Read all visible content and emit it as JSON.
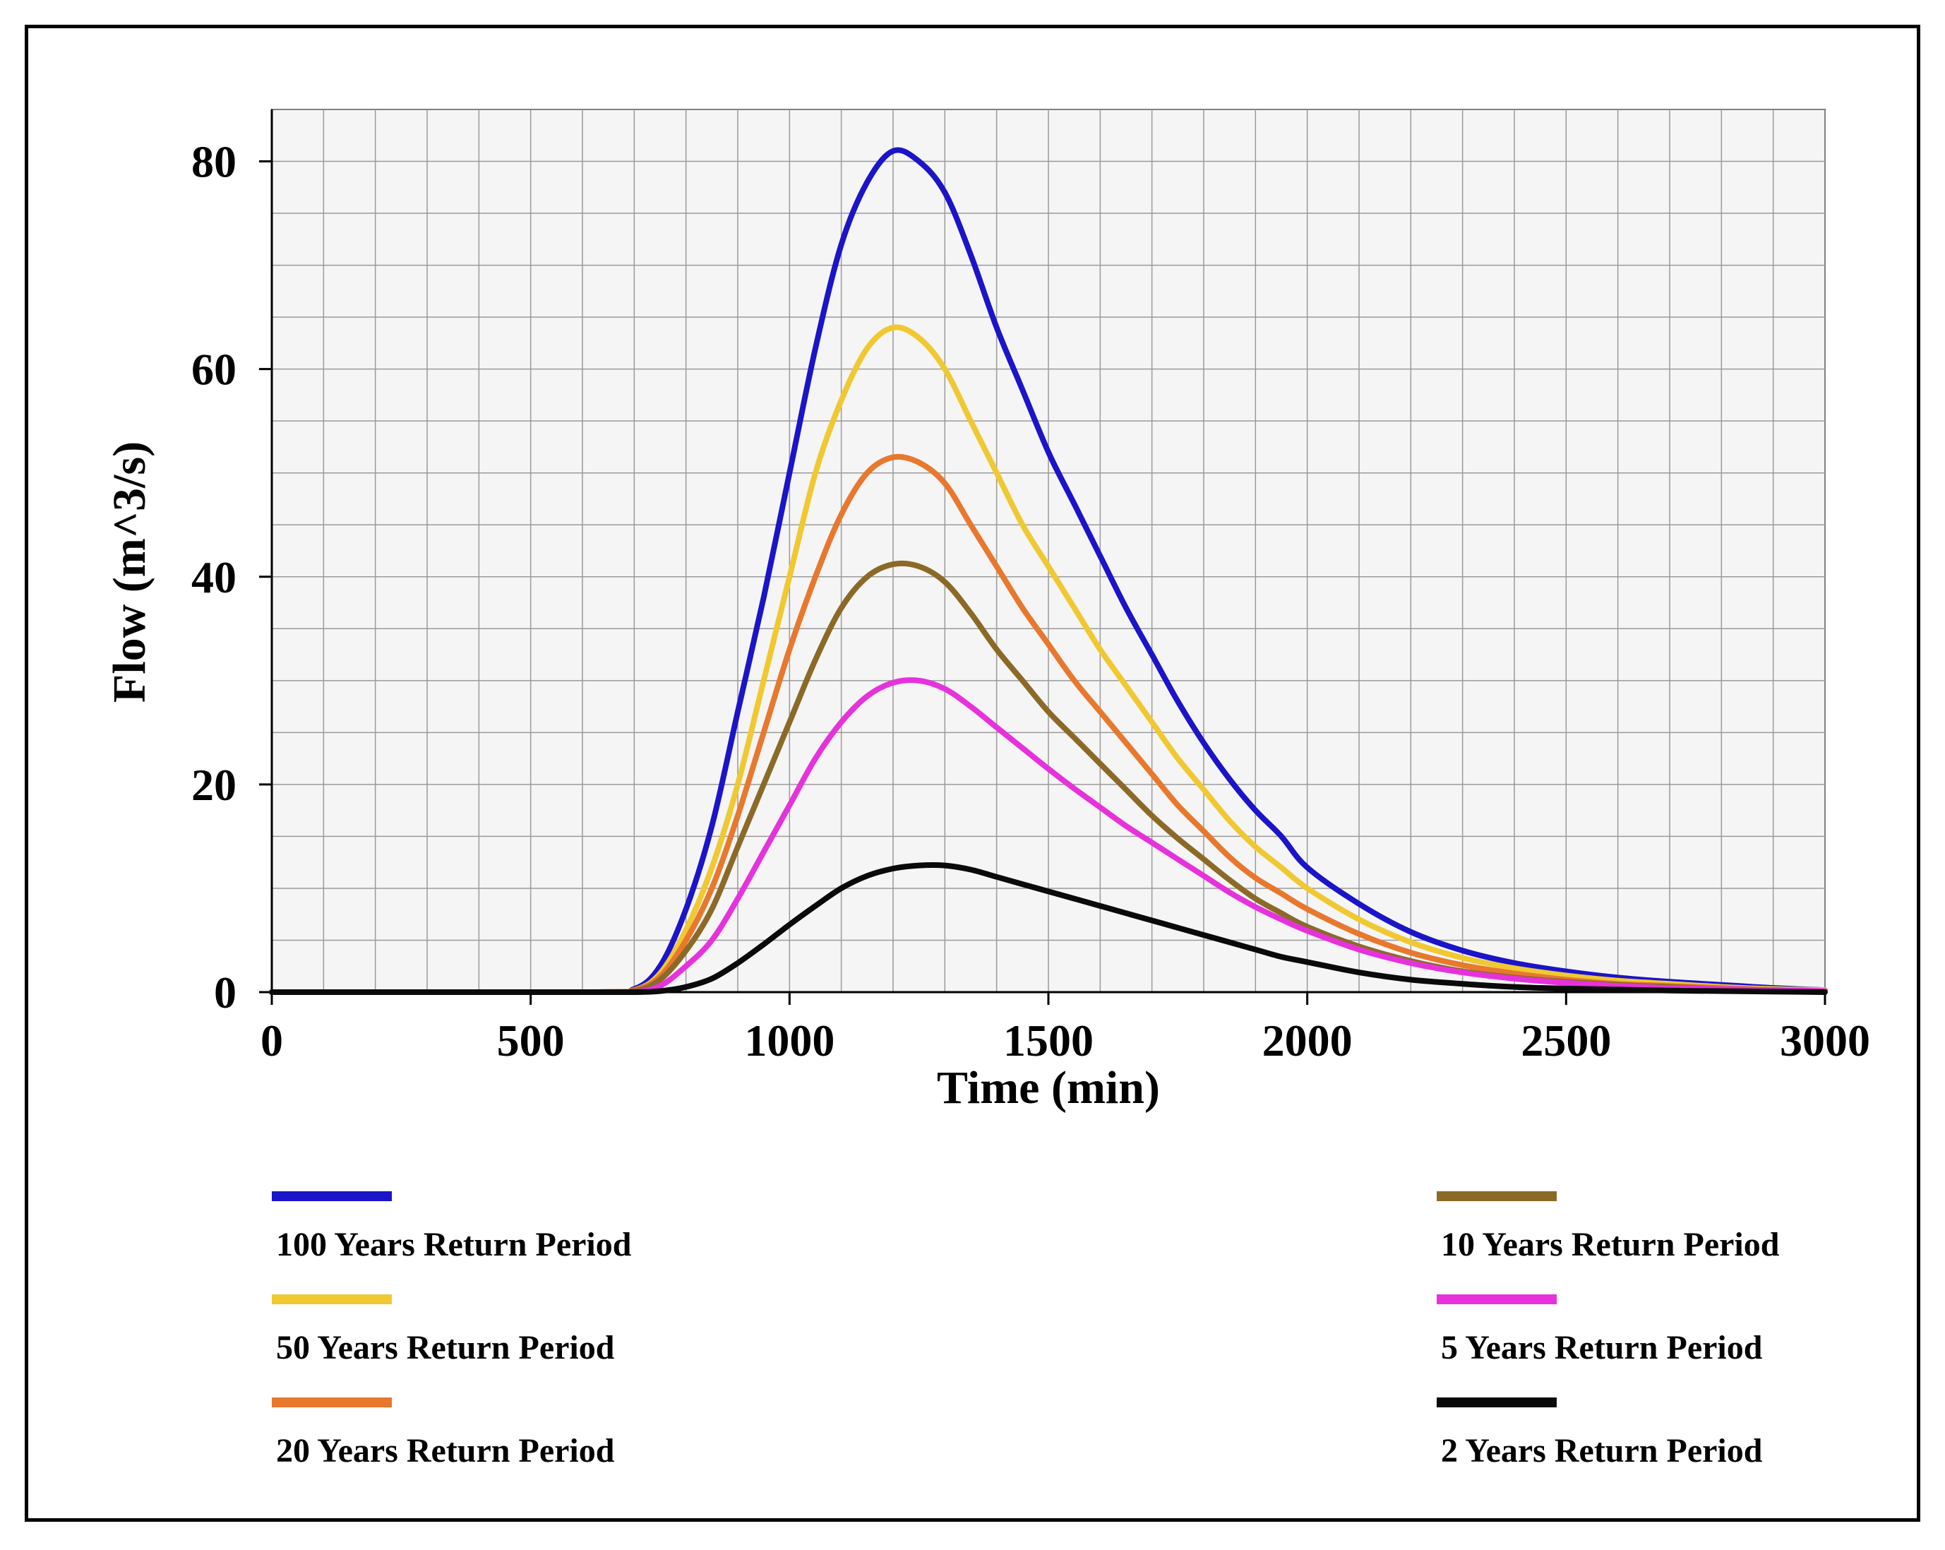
{
  "chart_data": {
    "type": "line",
    "title": "",
    "xlabel": "Time (min)",
    "ylabel": "Flow (m^3/s)",
    "xlim": [
      0,
      3000
    ],
    "ylim": [
      0,
      85
    ],
    "x_ticks": [
      0,
      500,
      1000,
      1500,
      2000,
      2500,
      3000
    ],
    "y_ticks": [
      0,
      20,
      40,
      60,
      80
    ],
    "grid": true,
    "legend_position": "bottom",
    "series": [
      {
        "name": "100 Years Return Period",
        "color": "#1c14c8",
        "x": [
          0,
          620,
          700,
          750,
          800,
          850,
          900,
          950,
          1000,
          1050,
          1100,
          1150,
          1200,
          1250,
          1300,
          1350,
          1400,
          1450,
          1500,
          1550,
          1600,
          1650,
          1700,
          1750,
          1800,
          1850,
          1900,
          1950,
          2000,
          2100,
          2200,
          2300,
          2400,
          2500,
          2600,
          2700,
          2800,
          2900,
          3000
        ],
        "y": [
          0,
          0,
          0.3,
          2.5,
          8,
          16,
          27,
          38,
          50,
          62,
          72,
          78,
          81,
          80,
          77,
          71,
          64,
          58,
          52,
          47,
          42,
          37,
          32.5,
          28,
          24,
          20.5,
          17.5,
          15,
          12,
          8.5,
          5.8,
          4,
          2.8,
          2,
          1.4,
          1,
          0.7,
          0.4,
          0.2
        ]
      },
      {
        "name": "50 Years Return Period",
        "color": "#f0c832",
        "x": [
          0,
          620,
          700,
          750,
          800,
          850,
          900,
          950,
          1000,
          1050,
          1100,
          1150,
          1200,
          1250,
          1300,
          1350,
          1400,
          1450,
          1500,
          1550,
          1600,
          1650,
          1700,
          1750,
          1800,
          1850,
          1900,
          1950,
          2000,
          2100,
          2200,
          2300,
          2400,
          2500,
          2600,
          2700,
          2800,
          2900,
          3000
        ],
        "y": [
          0,
          0,
          0.2,
          1.8,
          6,
          12,
          20,
          30,
          40,
          50,
          57,
          62,
          64,
          63,
          60,
          55,
          50,
          45,
          41,
          37,
          33,
          29.5,
          26,
          22.5,
          19.5,
          16.5,
          14,
          12,
          10,
          7,
          4.8,
          3.3,
          2.3,
          1.6,
          1.1,
          0.8,
          0.5,
          0.3,
          0.2
        ]
      },
      {
        "name": "20 Years Return Period",
        "color": "#e8782d",
        "x": [
          0,
          620,
          700,
          750,
          800,
          850,
          900,
          950,
          1000,
          1050,
          1100,
          1150,
          1200,
          1250,
          1300,
          1350,
          1400,
          1450,
          1500,
          1550,
          1600,
          1650,
          1700,
          1750,
          1800,
          1850,
          1900,
          1950,
          2000,
          2100,
          2200,
          2300,
          2400,
          2500,
          2600,
          2700,
          2800,
          2900,
          3000
        ],
        "y": [
          0,
          0,
          0.2,
          1.5,
          5,
          10,
          17,
          25,
          33,
          40,
          46,
          50,
          51.5,
          51,
          49,
          45,
          41,
          37,
          33.5,
          30,
          27,
          24,
          21,
          18,
          15.5,
          13,
          11,
          9.5,
          8,
          5.6,
          3.8,
          2.6,
          1.8,
          1.2,
          0.8,
          0.6,
          0.4,
          0.2,
          0.1
        ]
      },
      {
        "name": "10 Years Return Period",
        "color": "#8b6a28",
        "x": [
          0,
          620,
          700,
          750,
          800,
          850,
          900,
          950,
          1000,
          1050,
          1100,
          1150,
          1200,
          1250,
          1300,
          1350,
          1400,
          1450,
          1500,
          1550,
          1600,
          1650,
          1700,
          1750,
          1800,
          1850,
          1900,
          1950,
          2000,
          2100,
          2200,
          2300,
          2400,
          2500,
          2600,
          2700,
          2800,
          2900,
          3000
        ],
        "y": [
          0,
          0,
          0.1,
          1.2,
          4,
          8,
          14,
          20,
          26,
          32,
          37,
          40,
          41.2,
          41,
          39.5,
          36.5,
          33,
          30,
          27,
          24.5,
          22,
          19.5,
          17,
          14.8,
          12.8,
          10.8,
          9,
          7.6,
          6.3,
          4.4,
          3,
          2,
          1.4,
          1,
          0.7,
          0.5,
          0.3,
          0.2,
          0.1
        ]
      },
      {
        "name": "5 Years Return Period",
        "color": "#e632dc",
        "x": [
          0,
          620,
          700,
          750,
          800,
          850,
          900,
          950,
          1000,
          1050,
          1100,
          1150,
          1200,
          1250,
          1300,
          1350,
          1400,
          1450,
          1500,
          1550,
          1600,
          1650,
          1700,
          1750,
          1800,
          1850,
          1900,
          1950,
          2000,
          2100,
          2200,
          2300,
          2400,
          2500,
          2600,
          2700,
          2800,
          2900,
          3000
        ],
        "y": [
          0,
          0,
          0,
          0.6,
          2.5,
          5,
          9,
          13.5,
          18,
          22.5,
          26,
          28.5,
          29.8,
          30,
          29.2,
          27.5,
          25.5,
          23.5,
          21.5,
          19.6,
          17.8,
          16,
          14.4,
          12.8,
          11.2,
          9.6,
          8.2,
          7,
          5.9,
          4.1,
          2.8,
          1.9,
          1.3,
          0.9,
          0.6,
          0.4,
          0.3,
          0.2,
          0.1
        ]
      },
      {
        "name": "2 Years Return Period",
        "color": "#0a0a0a",
        "x": [
          0,
          620,
          700,
          750,
          800,
          850,
          900,
          950,
          1000,
          1050,
          1100,
          1150,
          1200,
          1250,
          1300,
          1350,
          1400,
          1450,
          1500,
          1550,
          1600,
          1650,
          1700,
          1750,
          1800,
          1850,
          1900,
          1950,
          2000,
          2100,
          2200,
          2300,
          2400,
          2500,
          2600,
          2700,
          2800,
          2900,
          3000
        ],
        "y": [
          0,
          0,
          0,
          0.1,
          0.5,
          1.3,
          2.8,
          4.6,
          6.5,
          8.3,
          10,
          11.2,
          11.9,
          12.2,
          12.2,
          11.8,
          11.1,
          10.4,
          9.7,
          9,
          8.3,
          7.6,
          6.9,
          6.2,
          5.5,
          4.8,
          4.1,
          3.4,
          2.9,
          1.9,
          1.2,
          0.8,
          0.5,
          0.35,
          0.25,
          0.15,
          0.1,
          0.05,
          0
        ]
      }
    ]
  }
}
